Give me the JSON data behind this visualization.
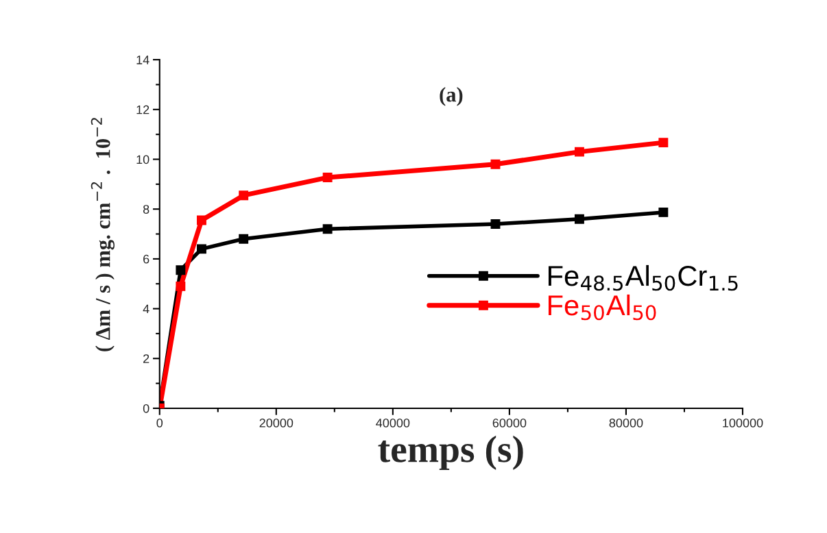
{
  "chart_data": {
    "type": "line",
    "xlabel": "temps (s)",
    "ylabel": "( Δm / s ) mg. cm$^{−2}$ .  10$^{−2}$",
    "annotations": [
      "(a)"
    ],
    "x": [
      0,
      3600,
      7200,
      14400,
      28800,
      57600,
      72000,
      86400
    ],
    "series": [
      {
        "name": "Fe$_{48.5}$Al$_{50}$Cr$_{1.5}$",
        "color": "#000000",
        "values": [
          0.1,
          5.55,
          6.4,
          6.8,
          7.2,
          7.4,
          7.6,
          7.87
        ]
      },
      {
        "name": "Fe$_{50}$Al$_{50}$",
        "color": "#ff0000",
        "values": [
          0,
          4.9,
          7.55,
          8.55,
          9.27,
          9.8,
          10.3,
          10.67
        ]
      }
    ],
    "xlim": [
      0,
      100000
    ],
    "xticks": [
      0,
      20000,
      40000,
      60000,
      80000,
      100000
    ],
    "ylim": [
      0,
      14
    ],
    "yticks": [
      0,
      2,
      4,
      6,
      8,
      10,
      12,
      14
    ],
    "grid": false,
    "legend": "right",
    "marker": "square",
    "line_style": "solid"
  }
}
